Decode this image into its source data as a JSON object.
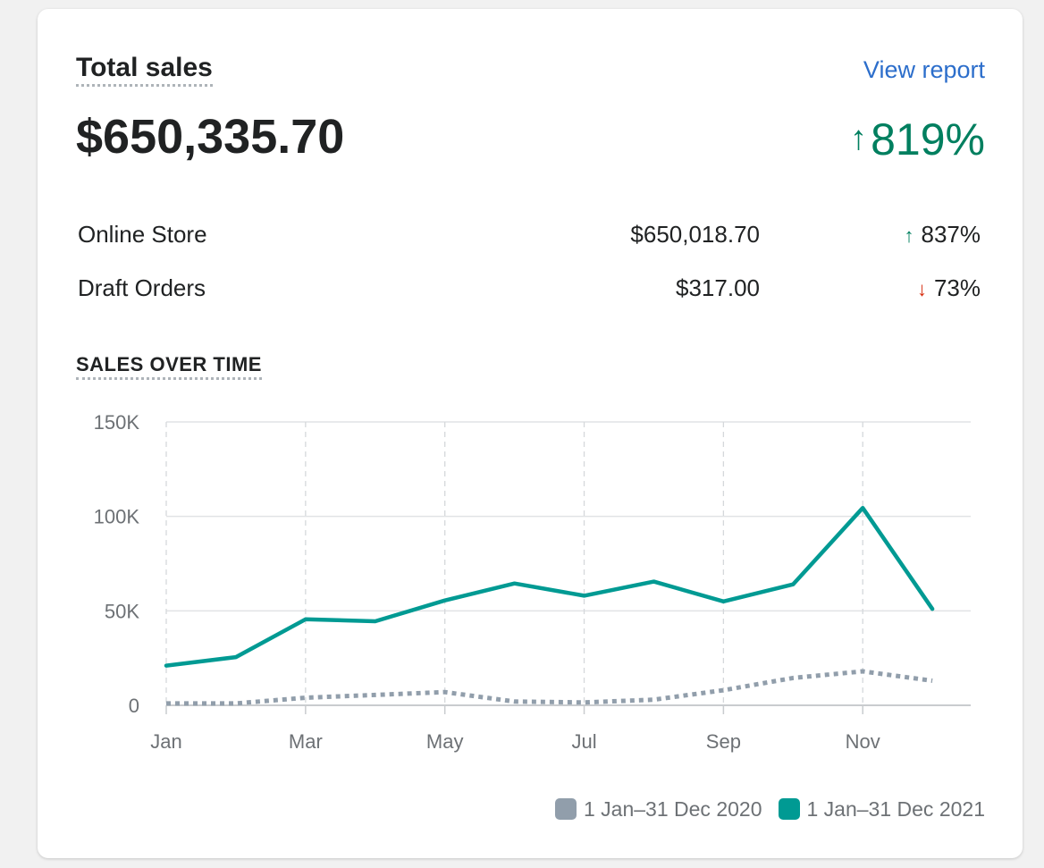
{
  "card": {
    "title": "Total sales",
    "view_report": "View report",
    "total": "$650,335.70",
    "change_arrow": "↑",
    "change": "819%"
  },
  "breakdown": [
    {
      "name": "Online Store",
      "amount": "$650,018.70",
      "arrow": "↑",
      "direction": "up",
      "pct": "837%"
    },
    {
      "name": "Draft Orders",
      "amount": "$317.00",
      "arrow": "↓",
      "direction": "down",
      "pct": "73%"
    }
  ],
  "colors": {
    "accent_2021": "#009a93",
    "series_2020": "#919eab",
    "positive": "#007f5f",
    "negative": "#d72c0d",
    "link": "#2c6ecb"
  },
  "chart_data": {
    "type": "line",
    "title": "SALES OVER TIME",
    "x": [
      "Jan",
      "Feb",
      "Mar",
      "Apr",
      "May",
      "Jun",
      "Jul",
      "Aug",
      "Sep",
      "Oct",
      "Nov",
      "Dec"
    ],
    "x_tick_labels": [
      "Jan",
      "Mar",
      "May",
      "Jul",
      "Sep",
      "Nov"
    ],
    "y_tick_labels": [
      "0",
      "50K",
      "100K",
      "150K"
    ],
    "y_ticks": [
      0,
      50000,
      100000,
      150000
    ],
    "ylim": [
      0,
      150000
    ],
    "grid": true,
    "legend_position": "bottom-right",
    "series": [
      {
        "name": "1 Jan–31 Dec 2020",
        "style": "dotted",
        "color": "#919eab",
        "values": [
          1000,
          1000,
          4000,
          5500,
          7000,
          2000,
          1500,
          3000,
          8000,
          14500,
          18000,
          13000
        ]
      },
      {
        "name": "1 Jan–31 Dec 2021",
        "style": "solid",
        "color": "#009a93",
        "values": [
          21000,
          25500,
          45500,
          44500,
          55500,
          64500,
          58000,
          65500,
          55000,
          64000,
          104500,
          51000
        ]
      }
    ]
  }
}
